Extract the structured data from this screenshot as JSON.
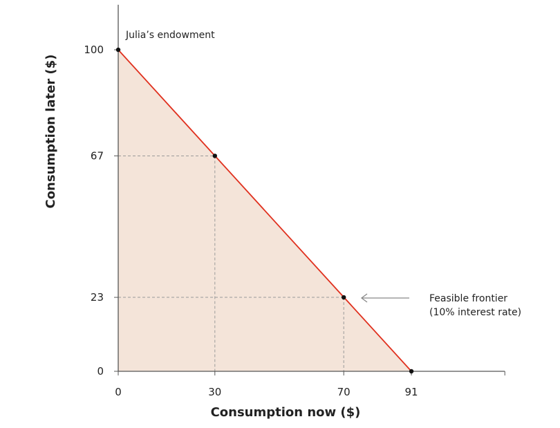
{
  "chart_data": {
    "type": "area",
    "xlabel": "Consumption now ($)",
    "ylabel": "Consumption later ($)",
    "xlim": [
      0,
      120
    ],
    "ylim": [
      0,
      114
    ],
    "x_ticks": [
      0,
      30,
      70,
      91
    ],
    "y_ticks": [
      0,
      23,
      67,
      100
    ],
    "grid": false,
    "frontier": {
      "x": [
        0,
        91
      ],
      "y": [
        100,
        0
      ],
      "color": "#e0301e",
      "fill": "#f4e4d9"
    },
    "points": [
      {
        "x": 0,
        "y": 100
      },
      {
        "x": 30,
        "y": 67
      },
      {
        "x": 70,
        "y": 23
      },
      {
        "x": 91,
        "y": 0
      }
    ],
    "annotations": {
      "endowment": "Julia’s endowment",
      "frontier_line1": "Feasible frontier",
      "frontier_line2": "(10% interest rate)"
    }
  }
}
